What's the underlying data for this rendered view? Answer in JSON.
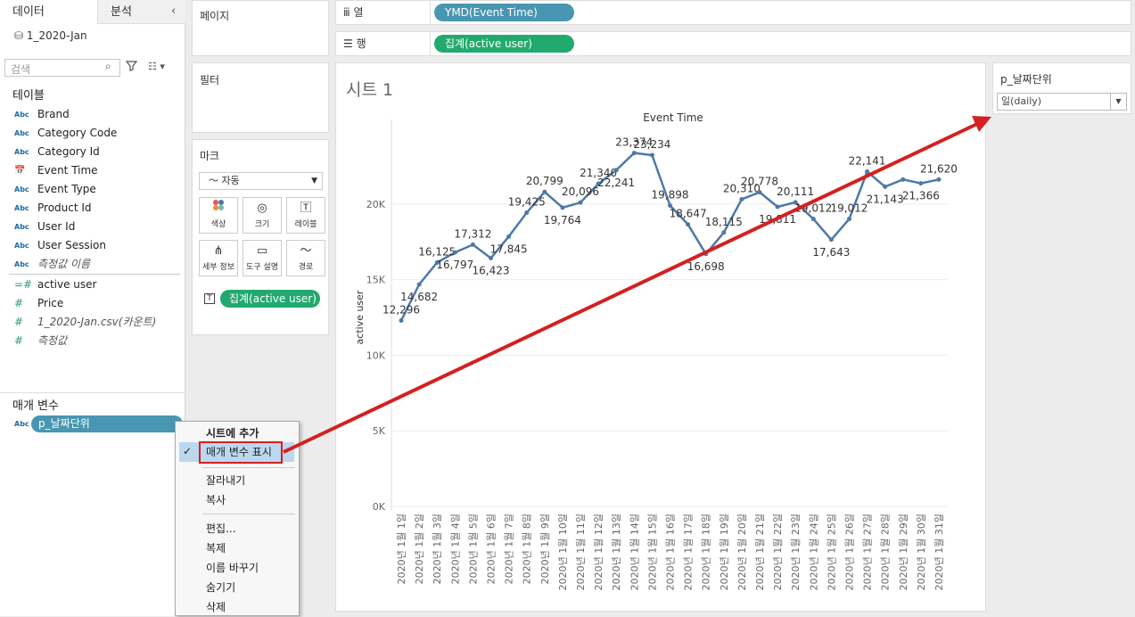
{
  "tabs": {
    "data": "데이터",
    "analysis": "분석"
  },
  "datasource": "1_2020-Jan",
  "search_placeholder": "검색",
  "tables_title": "테이블",
  "fields": [
    {
      "type": "Abc",
      "label": "Brand",
      "italic": false
    },
    {
      "type": "Abc",
      "label": "Category Code",
      "italic": false
    },
    {
      "type": "Abc",
      "label": "Category Id",
      "italic": false
    },
    {
      "type": "date",
      "label": "Event Time",
      "italic": false
    },
    {
      "type": "Abc",
      "label": "Event Type",
      "italic": false
    },
    {
      "type": "Abc",
      "label": "Product Id",
      "italic": false
    },
    {
      "type": "Abc",
      "label": "User Id",
      "italic": false
    },
    {
      "type": "Abc",
      "label": "User Session",
      "italic": false
    },
    {
      "type": "Abc",
      "label": "측정값 이름",
      "italic": true
    }
  ],
  "measures": [
    {
      "type": "=#",
      "label": "active user",
      "italic": false
    },
    {
      "type": "#",
      "label": "Price",
      "italic": false
    },
    {
      "type": "#",
      "label": "1_2020-Jan.csv(카운트)",
      "italic": true
    },
    {
      "type": "#",
      "label": "측정값",
      "italic": true
    }
  ],
  "parameters_title": "매개 변수",
  "parameter": {
    "type": "Abc",
    "label": "p_날짜단위"
  },
  "cards": {
    "pages": "페이지",
    "filters": "필터",
    "marks": "마크",
    "marks_type": "자동",
    "mark_buttons": [
      {
        "label": "색상",
        "icon": "color-icon"
      },
      {
        "label": "크기",
        "icon": "size-icon"
      },
      {
        "label": "레이블",
        "icon": "label-icon"
      },
      {
        "label": "세부 정보",
        "icon": "detail-icon"
      },
      {
        "label": "도구 설명",
        "icon": "tooltip-icon"
      },
      {
        "label": "경로",
        "icon": "path-icon"
      }
    ],
    "marks_pill": "집계(active user)",
    "marks_pill_icon": "T"
  },
  "shelves": {
    "columns_label": "열",
    "columns_pill": "YMD(Event Time)",
    "rows_label": "행",
    "rows_pill": "집계(active user)"
  },
  "sheet_title": "시트 1",
  "param_control": {
    "title": "p_날짜단위",
    "value": "일(daily)"
  },
  "context_menu": {
    "header": "시트에 추가",
    "items": [
      "매개 변수 표시",
      "잘라내기",
      "복사",
      "편집...",
      "복제",
      "이름 바꾸기",
      "숨기기",
      "삭제"
    ],
    "checked_item": "매개 변수 표시"
  },
  "colors": {
    "line": "#4e79a7",
    "pill_blue": "#4996b2",
    "pill_green": "#22aa6e",
    "annotation": "#d42020"
  },
  "chart_data": {
    "type": "line",
    "title": "Event Time",
    "ylabel": "active user",
    "ylim": [
      0,
      25000
    ],
    "yticks": [
      "0K",
      "5K",
      "10K",
      "15K",
      "20K"
    ],
    "categories": [
      "2020년 1월 1일",
      "2020년 1월 2일",
      "2020년 1월 3일",
      "2020년 1월 4일",
      "2020년 1월 5일",
      "2020년 1월 6일",
      "2020년 1월 7일",
      "2020년 1월 8일",
      "2020년 1월 9일",
      "2020년 1월 10일",
      "2020년 1월 11일",
      "2020년 1월 12일",
      "2020년 1월 13일",
      "2020년 1월 14일",
      "2020년 1월 15일",
      "2020년 1월 16일",
      "2020년 1월 17일",
      "2020년 1월 18일",
      "2020년 1월 19일",
      "2020년 1월 20일",
      "2020년 1월 21일",
      "2020년 1월 22일",
      "2020년 1월 23일",
      "2020년 1월 24일",
      "2020년 1월 25일",
      "2020년 1월 26일",
      "2020년 1월 27일",
      "2020년 1월 28일",
      "2020년 1월 29일",
      "2020년 1월 30일",
      "2020년 1월 31일"
    ],
    "values": [
      12296,
      14682,
      16125,
      16797,
      17312,
      16423,
      17845,
      19425,
      20799,
      19764,
      20096,
      21340,
      22241,
      23374,
      23234,
      19898,
      18647,
      16698,
      18115,
      20310,
      20778,
      19811,
      20111,
      19012,
      17643,
      19012,
      22141,
      21143,
      21620,
      21366,
      21620
    ],
    "data_labels": [
      "12,296",
      "14,682",
      "16,125",
      "16,797",
      "17,312",
      "16,423",
      "17,845",
      "19,425",
      "20,799",
      "19,764",
      "20,096",
      "21,340",
      "22,241",
      "23,374",
      "23,234",
      "19,898",
      "18,647",
      "16,698",
      "18,115",
      "20,310",
      "20,778",
      "19,811",
      "20,111",
      "19,012",
      "17,643",
      "19,012",
      "22,141",
      "21,143",
      "",
      "21,366",
      "21,620"
    ],
    "grid": true
  }
}
